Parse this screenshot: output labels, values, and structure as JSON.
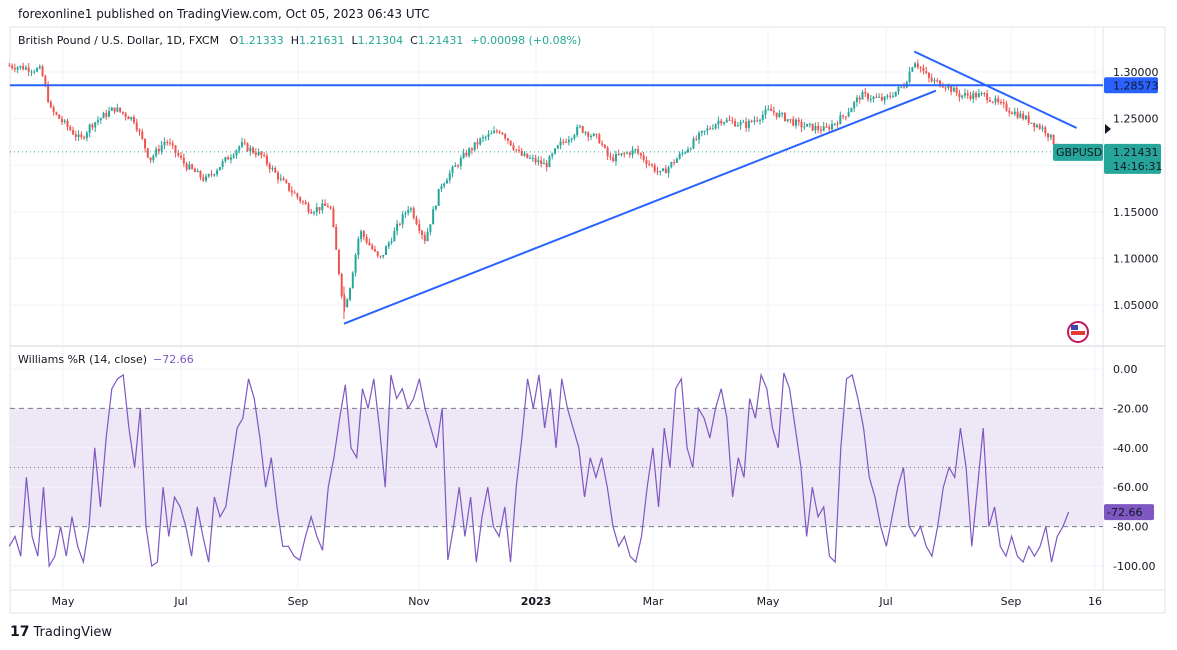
{
  "header": {
    "published": "forexonline1 published on TradingView.com, Oct 05, 2023 06:43 UTC"
  },
  "legend": {
    "symbol": "British Pound / U.S. Dollar, 1D, FXCM",
    "o_label": "O",
    "o": "1.21333",
    "h_label": "H",
    "h": "1.21631",
    "l_label": "L",
    "l": "1.21304",
    "c_label": "C",
    "c": "1.21431",
    "change": "+0.00098 (+0.08%)"
  },
  "indicator": {
    "label": "Williams %R (14, close)",
    "value": "−72.66",
    "value_tag": "-72.66"
  },
  "price_tags": {
    "hline": "1.28573",
    "symbol": "GBPUSD",
    "last": "1.21431",
    "countdown": "14:16:31"
  },
  "footer": {
    "brand": "TradingView"
  },
  "colors": {
    "up": "#26a69a",
    "down": "#ef5350",
    "line": "#2962ff",
    "wr": "#7e57c2",
    "wr_band": "#ede7f6"
  },
  "chart_data": [
    {
      "type": "candlestick",
      "title": "British Pound / U.S. Dollar, 1D, FXCM",
      "ylim": [
        1.02,
        1.33
      ],
      "y_ticks": [
        "1.30000",
        "1.25000",
        "1.15000",
        "1.10000",
        "1.05000"
      ],
      "x_ticks": [
        "May",
        "Jul",
        "Sep",
        "Nov",
        "2023",
        "Mar",
        "May",
        "Jul",
        "Sep",
        "16"
      ],
      "grid": true,
      "approx_close_path": [
        [
          "2022-04-10",
          1.307
        ],
        [
          "2022-04-26",
          1.302
        ],
        [
          "2022-05-01",
          1.259
        ],
        [
          "2022-05-16",
          1.227
        ],
        [
          "2022-05-21",
          1.243
        ],
        [
          "2022-06-02",
          1.261
        ],
        [
          "2022-06-12",
          1.249
        ],
        [
          "2022-06-20",
          1.206
        ],
        [
          "2022-06-28",
          1.227
        ],
        [
          "2022-07-08",
          1.2
        ],
        [
          "2022-07-18",
          1.184
        ],
        [
          "2022-08-05",
          1.222
        ],
        [
          "2022-08-15",
          1.211
        ],
        [
          "2022-08-25",
          1.184
        ],
        [
          "2022-09-09",
          1.152
        ],
        [
          "2022-09-19",
          1.157
        ],
        [
          "2022-09-26",
          1.045
        ],
        [
          "2022-09-29",
          1.07
        ],
        [
          "2022-10-04",
          1.13
        ],
        [
          "2022-10-14",
          1.098
        ],
        [
          "2022-10-22",
          1.13
        ],
        [
          "2022-10-29",
          1.157
        ],
        [
          "2022-11-06",
          1.12
        ],
        [
          "2022-11-14",
          1.179
        ],
        [
          "2022-11-26",
          1.211
        ],
        [
          "2022-12-04",
          1.227
        ],
        [
          "2022-12-14",
          1.238
        ],
        [
          "2022-12-24",
          1.211
        ],
        [
          "2023-01-06",
          1.2
        ],
        [
          "2023-01-13",
          1.222
        ],
        [
          "2023-01-23",
          1.24
        ],
        [
          "2023-02-02",
          1.227
        ],
        [
          "2023-02-07",
          1.206
        ],
        [
          "2023-02-20",
          1.216
        ],
        [
          "2023-03-05",
          1.19
        ],
        [
          "2023-03-15",
          1.211
        ],
        [
          "2023-03-25",
          1.232
        ],
        [
          "2023-04-04",
          1.249
        ],
        [
          "2023-04-17",
          1.243
        ],
        [
          "2023-04-29",
          1.259
        ],
        [
          "2023-05-14",
          1.243
        ],
        [
          "2023-05-27",
          1.238
        ],
        [
          "2023-06-06",
          1.254
        ],
        [
          "2023-06-14",
          1.275
        ],
        [
          "2023-06-26",
          1.27
        ],
        [
          "2023-07-06",
          1.286
        ],
        [
          "2023-07-11",
          1.313
        ],
        [
          "2023-07-19",
          1.291
        ],
        [
          "2023-07-27",
          1.286
        ],
        [
          "2023-08-03",
          1.275
        ],
        [
          "2023-08-16",
          1.275
        ],
        [
          "2023-08-23",
          1.265
        ],
        [
          "2023-09-02",
          1.254
        ],
        [
          "2023-09-15",
          1.238
        ],
        [
          "2023-09-23",
          1.214
        ]
      ],
      "horizontal_line": 1.28573,
      "trend_lines": [
        {
          "from": [
            "2022-09-26",
            1.03
          ],
          "to": [
            "2023-07-22",
            1.28
          ]
        },
        {
          "from": [
            "2023-07-11",
            1.322
          ],
          "to": [
            "2023-10-01",
            1.24
          ]
        }
      ],
      "last_price": 1.21431
    },
    {
      "type": "line",
      "title": "Williams %R (14, close)",
      "ylim": [
        -100,
        0
      ],
      "y_ticks": [
        "0.00",
        "-20.00",
        "-40.00",
        "-60.00",
        "-80.00",
        "-100.00"
      ],
      "bands": [
        -20,
        -50,
        -80
      ],
      "x_range": [
        "2022-04-10",
        "2023-09-27"
      ],
      "values": [
        -90,
        -85,
        -95,
        -55,
        -85,
        -95,
        -60,
        -100,
        -95,
        -80,
        -95,
        -75,
        -90,
        -98,
        -80,
        -40,
        -70,
        -35,
        -10,
        -5,
        -3,
        -30,
        -50,
        -20,
        -80,
        -100,
        -98,
        -60,
        -85,
        -65,
        -70,
        -80,
        -95,
        -70,
        -85,
        -98,
        -65,
        -75,
        -70,
        -50,
        -30,
        -25,
        -5,
        -15,
        -35,
        -60,
        -45,
        -70,
        -90,
        -90,
        -95,
        -97,
        -85,
        -75,
        -85,
        -92,
        -60,
        -45,
        -25,
        -8,
        -40,
        -45,
        -10,
        -20,
        -5,
        -30,
        -60,
        -3,
        -15,
        -10,
        -20,
        -15,
        -5,
        -20,
        -30,
        -40,
        -20,
        -97,
        -80,
        -60,
        -85,
        -65,
        -98,
        -75,
        -60,
        -80,
        -85,
        -70,
        -98,
        -60,
        -35,
        -5,
        -20,
        -3,
        -30,
        -10,
        -40,
        -5,
        -20,
        -30,
        -40,
        -65,
        -45,
        -55,
        -45,
        -60,
        -80,
        -90,
        -85,
        -95,
        -98,
        -85,
        -60,
        -40,
        -70,
        -30,
        -50,
        -10,
        -5,
        -40,
        -50,
        -20,
        -25,
        -35,
        -20,
        -10,
        -25,
        -65,
        -45,
        -55,
        -15,
        -25,
        -3,
        -10,
        -30,
        -40,
        -2,
        -10,
        -30,
        -50,
        -85,
        -60,
        -75,
        -70,
        -95,
        -98,
        -40,
        -5,
        -3,
        -15,
        -30,
        -55,
        -65,
        -80,
        -90,
        -75,
        -60,
        -50,
        -80,
        -85,
        -80,
        -90,
        -95,
        -80,
        -60,
        -50,
        -55,
        -30,
        -50,
        -90,
        -60,
        -30,
        -80,
        -70,
        -90,
        -95,
        -85,
        -95,
        -98,
        -90,
        -95,
        -90,
        -80,
        -98,
        -85,
        -80,
        -72.66
      ],
      "last_value": -72.66
    }
  ]
}
